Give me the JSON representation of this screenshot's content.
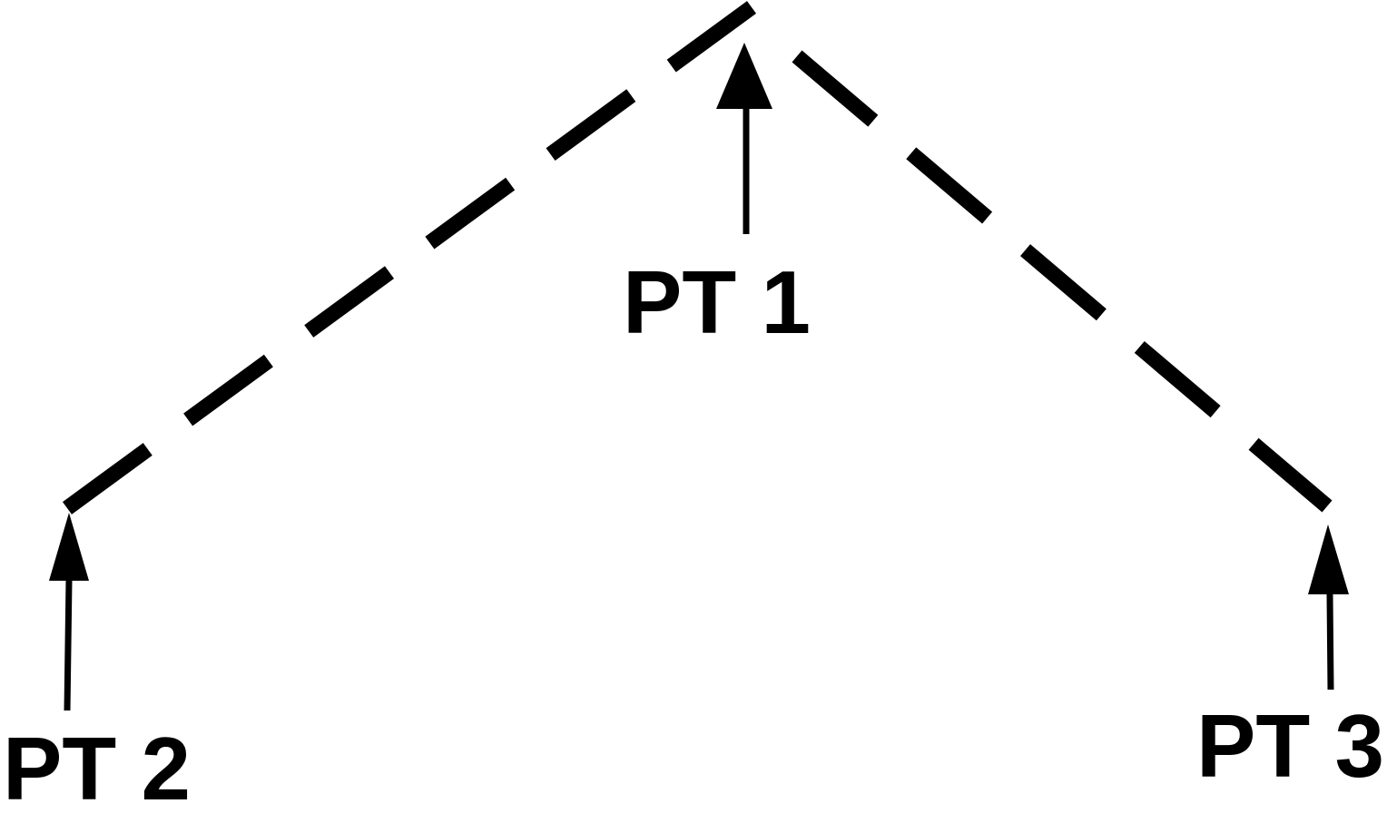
{
  "diagram": {
    "points": [
      {
        "label": "PT 1"
      },
      {
        "label": "PT 2"
      },
      {
        "label": "PT 3"
      }
    ],
    "colors": {
      "stroke": "#000000",
      "background": "#ffffff"
    },
    "line_style": "dashed"
  }
}
